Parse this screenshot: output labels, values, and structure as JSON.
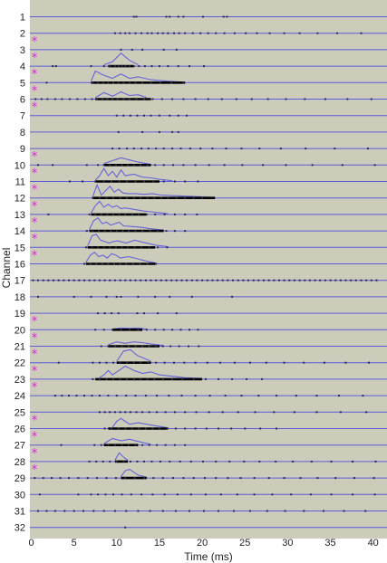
{
  "chart_data": {
    "type": "raster",
    "xlabel": "Time (ms)",
    "ylabel": "Channel",
    "xlim": [
      0,
      41
    ],
    "x_ticks": [
      0,
      5,
      10,
      15,
      20,
      25,
      30,
      35,
      40
    ],
    "channels": [
      1,
      2,
      3,
      4,
      5,
      6,
      7,
      8,
      9,
      10,
      11,
      12,
      13,
      14,
      15,
      16,
      17,
      18,
      19,
      20,
      21,
      22,
      23,
      24,
      25,
      26,
      27,
      28,
      29,
      30,
      31,
      32
    ],
    "marked_channels": [
      3,
      4,
      5,
      6,
      7,
      10,
      11,
      12,
      13,
      14,
      15,
      16,
      20,
      21,
      22,
      23,
      24,
      26,
      27,
      28,
      29
    ],
    "marker_symbol": "*",
    "colors": {
      "background": "#cdcbb9",
      "channel_line": "#5b5bdc",
      "psth_line": "#6464d8",
      "burst_bar": "#000000",
      "spike": "#2b2b45",
      "marker": "#dd22dd"
    },
    "spike_times": {
      "1": [
        12.0,
        12.3,
        15.8,
        16.2,
        17.2,
        17.8,
        20.1,
        22.5,
        22.9
      ],
      "2": [
        9.8,
        10.4,
        11.0,
        11.5,
        12.2,
        12.9,
        13.6,
        14.1,
        14.8,
        15.4,
        16.0,
        16.7,
        17.3,
        18.0,
        18.9,
        19.8,
        20.7,
        21.6,
        22.6,
        23.8,
        25.1,
        26.4,
        27.9,
        29.6,
        31.4,
        33.5,
        35.8,
        38.6
      ],
      "3": [
        10.5,
        11.8,
        13.0,
        15.5,
        17.0
      ],
      "4": [
        2.5,
        2.9,
        7.0,
        8.5,
        9.2,
        9.8,
        10.2,
        10.6,
        11.0,
        11.5,
        12.0,
        12.6,
        13.3,
        14.1,
        15.0,
        16.0,
        17.2,
        18.5,
        20.2
      ],
      "5": [
        1.8,
        7.2,
        7.8,
        8.4,
        9.0,
        9.6,
        10.2,
        10.8,
        11.5,
        12.2,
        13.0,
        14.0,
        15.1,
        16.4,
        17.8
      ],
      "6": [
        0.5,
        1.2,
        1.9,
        2.8,
        3.6,
        4.5,
        5.4,
        6.3,
        7.1,
        7.7,
        8.3,
        8.9,
        9.5,
        10.1,
        10.8,
        11.5,
        12.3,
        13.2,
        14.2,
        15.3,
        16.5,
        17.8,
        19.2,
        20.7,
        22.3,
        24.0,
        25.8,
        27.7,
        29.8,
        32.0,
        34.4,
        37.0,
        39.8
      ],
      "7": [
        10.0,
        10.8,
        11.6,
        12.4,
        13.2,
        14.0,
        15.0,
        16.2,
        17.2,
        18.2
      ],
      "8": [
        10.2,
        13.0,
        15.0,
        16.5,
        17.2
      ],
      "9": [
        9.5,
        10.3,
        11.2,
        12.0,
        12.9,
        13.7,
        14.6,
        15.5,
        16.5,
        17.5,
        18.6,
        19.8,
        21.2,
        22.8,
        24.6,
        26.7,
        29.2,
        32.1,
        35.5,
        39.4
      ],
      "10": [
        0.8,
        2.5,
        6.5,
        7.8,
        8.5,
        9.2,
        9.9,
        10.6,
        11.3,
        12.0,
        12.8,
        13.6,
        14.5,
        15.5,
        16.6,
        17.8,
        19.2,
        20.8,
        22.6,
        24.7,
        27.1,
        29.8,
        32.9,
        36.4,
        40.2
      ],
      "11": [
        4.5,
        6.0,
        7.5,
        8.5,
        9.4,
        10.3,
        11.2,
        12.2,
        13.2,
        14.3,
        15.5,
        16.8,
        18.0,
        19.5
      ],
      "12": [
        7.2,
        8.0,
        8.8,
        9.6,
        10.4,
        11.2,
        12.0,
        12.8,
        13.6,
        14.4,
        15.2,
        16.0,
        17.0,
        18.0,
        19.0,
        20.0
      ],
      "13": [
        2.0,
        6.8,
        7.5,
        8.2,
        8.9,
        9.6,
        10.3,
        11.0,
        11.8,
        12.6,
        13.5,
        14.5,
        15.6,
        16.8,
        18.0,
        19.4
      ],
      "14": [
        6.5,
        7.2,
        7.9,
        8.6,
        9.3,
        10.0,
        10.7,
        11.4,
        12.2,
        13.0,
        13.9,
        14.8,
        15.8,
        16.8,
        18.0
      ],
      "15": [
        6.4,
        7.1,
        7.8,
        8.5,
        9.2,
        9.9,
        10.6,
        11.3,
        12.1,
        12.9,
        13.8,
        14.8,
        15.9
      ],
      "16": [
        6.2,
        6.9,
        7.6,
        8.3,
        9.0,
        9.7,
        10.4,
        11.1,
        11.9,
        12.7,
        13.6,
        14.6
      ],
      "17": [
        0.2,
        0.8,
        1.4,
        2.0,
        2.6,
        3.2,
        3.8,
        4.4,
        5.0,
        5.6,
        6.2,
        6.8,
        7.4,
        8.0,
        8.6,
        9.2,
        9.8,
        10.4,
        11.0,
        11.6,
        12.2,
        12.8,
        13.4,
        14.0,
        14.6,
        15.2,
        15.8,
        16.4,
        17.0,
        17.6,
        18.2,
        18.8,
        19.4,
        20.0,
        20.6,
        21.2,
        21.8,
        22.4,
        23.0,
        23.6,
        24.2,
        24.8,
        25.4,
        26.0,
        26.6,
        27.2,
        27.8,
        28.4,
        29.0,
        29.6,
        30.2,
        30.8,
        31.4,
        32.0,
        32.6,
        33.2,
        33.8,
        34.4,
        35.0,
        35.6,
        36.2,
        36.8,
        37.4,
        38.0,
        38.6,
        39.2,
        39.8,
        40.4
      ],
      "18": [
        0.8,
        5.0,
        7.0,
        8.8,
        10.0,
        10.5,
        12.5,
        14.5,
        16.2,
        18.8,
        23.5
      ],
      "19": [
        7.8,
        8.6,
        9.4,
        10.2,
        12.4,
        13.2,
        14.8,
        17.0
      ],
      "20": [
        7.5,
        8.5,
        9.5,
        10.5,
        11.5,
        12.5,
        13.5,
        14.5,
        15.5,
        16.5,
        17.5,
        18.5,
        19.5
      ],
      "21": [
        8.2,
        9.0,
        9.8,
        10.6,
        11.4,
        12.2,
        13.0,
        13.8,
        14.6,
        15.4,
        16.3,
        17.3,
        18.4,
        19.6
      ],
      "22": [
        3.2,
        7.2,
        8.0,
        8.8,
        9.6,
        10.4,
        11.2,
        12.0,
        12.8,
        13.7,
        14.6,
        15.6,
        16.7,
        17.9,
        19.2,
        20.6,
        22.1,
        23.8,
        25.6,
        27.5,
        29.6,
        31.9,
        34.3,
        36.8,
        39.5
      ],
      "23": [
        7.2,
        8.0,
        8.8,
        9.6,
        10.4,
        11.2,
        12.0,
        12.8,
        13.6,
        14.4,
        15.4,
        16.5,
        17.7,
        19.0,
        20.4,
        21.9,
        23.5,
        25.2,
        27.0
      ],
      "24": [
        2.8,
        3.6,
        4.4,
        5.3,
        6.2,
        7.1,
        8.0,
        9.0,
        10.0,
        11.1,
        12.2,
        13.4,
        14.7,
        16.1,
        17.6,
        19.2,
        20.9,
        22.7,
        24.6,
        26.6,
        28.7,
        31.0,
        33.4,
        36.0,
        38.8
      ],
      "25": [
        8.0,
        8.6,
        9.2,
        9.8,
        10.4,
        11.0,
        11.6,
        12.3,
        13.0,
        13.8,
        14.7,
        15.7,
        16.8,
        18.0,
        19.3,
        20.8,
        22.4,
        24.2,
        26.2,
        28.4,
        30.8,
        33.4,
        36.2,
        39.2
      ],
      "26": [
        8.6,
        9.4,
        10.2,
        11.0,
        11.8,
        12.6,
        13.4,
        14.2,
        15.0,
        15.9,
        16.9,
        18.0,
        19.2,
        20.5,
        21.9,
        23.4,
        25.0,
        26.8,
        28.7
      ],
      "27": [
        3.5,
        7.4,
        8.2,
        9.0,
        9.8,
        10.6,
        11.4,
        12.2,
        13.0,
        13.8,
        14.7,
        15.7,
        16.8,
        18.0
      ],
      "28": [
        6.8,
        7.6,
        8.4,
        9.2,
        10.0,
        10.8,
        11.6,
        12.4,
        13.2,
        14.1,
        15.1,
        16.2,
        17.4,
        18.7,
        20.1,
        21.6,
        23.2,
        24.9,
        26.7,
        28.6,
        30.6,
        32.8,
        35.1,
        37.6,
        40.3
      ],
      "29": [
        0.4,
        1.4,
        2.4,
        3.4,
        4.4,
        5.5,
        6.6,
        7.7,
        8.8,
        9.9,
        11.0,
        12.1,
        13.2,
        14.3,
        15.4,
        16.6,
        17.8,
        19.0,
        20.3,
        21.6,
        23.0,
        24.5,
        26.1,
        27.8,
        29.6,
        31.5,
        33.5,
        35.6,
        37.8,
        40.1
      ],
      "30": [
        1.0,
        5.5,
        7.0,
        7.8,
        8.7,
        9.6,
        10.6,
        11.7,
        12.9,
        14.2,
        15.6,
        17.1,
        18.7,
        20.4,
        22.2,
        24.1,
        26.1,
        28.2,
        30.4,
        32.7,
        35.1,
        37.6,
        40.2
      ],
      "31": [
        0.8,
        1.8,
        2.8,
        3.9,
        5.0,
        6.1,
        7.3,
        8.5,
        9.8,
        11.1,
        12.5,
        13.9,
        15.4,
        16.9,
        18.5,
        20.2,
        21.9,
        23.7,
        25.6,
        27.6,
        29.7,
        31.9,
        34.2,
        36.6,
        39.1
      ],
      "32": [
        11.0
      ]
    },
    "psth": {
      "4": {
        "x": [
          8.5,
          9.5,
          10.5,
          11.5,
          12.5
        ],
        "y": [
          0.1,
          0.3,
          0.9,
          0.4,
          0.1
        ]
      },
      "5": {
        "x": [
          7.0,
          7.5,
          8.5,
          9.5,
          10.5,
          11.5,
          12.5,
          14.0,
          16.0,
          17.5
        ],
        "y": [
          0.1,
          0.8,
          0.5,
          0.3,
          0.6,
          0.3,
          0.4,
          0.2,
          0.1,
          0.05
        ]
      },
      "6": {
        "x": [
          7.5,
          8.5,
          9.5,
          10.5,
          11.5,
          12.5,
          13.5
        ],
        "y": [
          0.1,
          0.45,
          0.2,
          0.5,
          0.25,
          0.3,
          0.1
        ]
      },
      "10": {
        "x": [
          8.5,
          9.5,
          10.5,
          11.5,
          12.5,
          14.0
        ],
        "y": [
          0.1,
          0.3,
          0.5,
          0.35,
          0.2,
          0.05
        ]
      },
      "11": {
        "x": [
          7.5,
          8.0,
          8.5,
          9.0,
          9.5,
          10.0,
          10.5,
          11.0,
          12.0,
          13.0,
          14.0,
          15.0,
          16.5
        ],
        "y": [
          0.1,
          0.4,
          0.9,
          0.4,
          0.7,
          0.3,
          0.8,
          0.4,
          0.5,
          0.3,
          0.25,
          0.15,
          0.05
        ]
      },
      "12": {
        "x": [
          7.2,
          7.7,
          8.2,
          8.7,
          9.2,
          9.7,
          10.2,
          10.7,
          11.2,
          12.2,
          13.2,
          14.2,
          15.2,
          17.0,
          19.0,
          21.0
        ],
        "y": [
          0.1,
          0.9,
          0.2,
          0.5,
          0.8,
          0.4,
          0.6,
          0.35,
          0.3,
          0.3,
          0.25,
          0.3,
          0.2,
          0.15,
          0.1,
          0.05
        ]
      },
      "13": {
        "x": [
          7.0,
          7.5,
          8.0,
          8.5,
          9.0,
          9.5,
          10.0,
          10.5,
          11.0,
          12.0,
          13.0,
          14.5,
          16.0
        ],
        "y": [
          0.1,
          0.6,
          0.9,
          0.5,
          0.7,
          0.5,
          0.6,
          0.4,
          0.45,
          0.35,
          0.25,
          0.15,
          0.05
        ]
      },
      "14": {
        "x": [
          6.8,
          7.3,
          7.8,
          8.3,
          8.8,
          9.3,
          9.8,
          10.3,
          10.8,
          11.8,
          12.8,
          14.0,
          15.5
        ],
        "y": [
          0.1,
          0.7,
          0.9,
          0.5,
          0.6,
          0.4,
          0.5,
          0.6,
          0.35,
          0.3,
          0.25,
          0.15,
          0.05
        ]
      },
      "15": {
        "x": [
          6.6,
          7.1,
          7.6,
          8.1,
          8.6,
          9.1,
          9.6,
          10.1,
          11.1,
          12.1,
          13.1,
          14.6,
          16.0
        ],
        "y": [
          0.1,
          0.8,
          0.9,
          0.5,
          0.4,
          0.3,
          0.4,
          0.45,
          0.3,
          0.5,
          0.35,
          0.15,
          0.05
        ]
      },
      "16": {
        "x": [
          6.4,
          6.9,
          7.4,
          7.9,
          8.4,
          8.9,
          9.4,
          9.9,
          10.4,
          11.4,
          12.4,
          13.4,
          14.6
        ],
        "y": [
          0.1,
          0.6,
          0.8,
          0.5,
          0.6,
          0.4,
          0.7,
          0.6,
          0.4,
          0.5,
          0.35,
          0.2,
          0.05
        ]
      },
      "20": {
        "x": [
          9.5,
          10.5,
          11.5,
          12.5,
          13.5
        ],
        "y": [
          0.05,
          0.12,
          0.1,
          0.12,
          0.05
        ]
      },
      "21": {
        "x": [
          9.0,
          10.0,
          11.0,
          12.0,
          13.0,
          14.0,
          15.5
        ],
        "y": [
          0.1,
          0.3,
          0.2,
          0.3,
          0.25,
          0.15,
          0.05
        ]
      },
      "22": {
        "x": [
          10.0,
          10.8,
          11.6,
          12.4,
          13.2,
          14.0
        ],
        "y": [
          0.1,
          0.8,
          0.9,
          0.5,
          0.3,
          0.1
        ]
      },
      "23": {
        "x": [
          8.0,
          8.5,
          9.0,
          9.5,
          10.0,
          10.5,
          11.0,
          12.0,
          13.0,
          14.0,
          15.0,
          16.5,
          18.0,
          20.0
        ],
        "y": [
          0.1,
          0.3,
          0.6,
          0.3,
          0.5,
          0.7,
          0.9,
          0.6,
          0.4,
          0.5,
          0.3,
          0.2,
          0.1,
          0.05
        ]
      },
      "26": {
        "x": [
          9.5,
          10.0,
          10.5,
          11.0,
          11.5,
          12.5,
          13.5,
          14.5,
          16.0
        ],
        "y": [
          0.1,
          0.5,
          0.7,
          0.5,
          0.3,
          0.4,
          0.3,
          0.2,
          0.05
        ]
      },
      "27": {
        "x": [
          8.5,
          9.5,
          10.5,
          11.5,
          12.5,
          14.0
        ],
        "y": [
          0.1,
          0.45,
          0.3,
          0.4,
          0.25,
          0.05
        ]
      },
      "28": {
        "x": [
          9.8,
          10.3,
          10.8,
          11.3
        ],
        "y": [
          0.1,
          0.6,
          0.3,
          0.1
        ]
      },
      "29": {
        "x": [
          10.5,
          11.0,
          11.5,
          12.0,
          12.5,
          13.5
        ],
        "y": [
          0.1,
          0.5,
          0.6,
          0.4,
          0.2,
          0.05
        ]
      }
    },
    "bursts": {
      "4": [
        9.0,
        12.0
      ],
      "5": [
        7.0,
        18.0
      ],
      "6": [
        7.5,
        14.0
      ],
      "10": [
        8.5,
        14.0
      ],
      "11": [
        7.5,
        15.0
      ],
      "12": [
        7.2,
        21.5
      ],
      "13": [
        7.0,
        13.5
      ],
      "14": [
        6.8,
        15.5
      ],
      "15": [
        6.6,
        14.5
      ],
      "16": [
        6.4,
        14.5
      ],
      "20": [
        9.5,
        13.0
      ],
      "21": [
        9.0,
        15.0
      ],
      "22": [
        10.0,
        14.0
      ],
      "23": [
        7.5,
        20.0
      ],
      "26": [
        9.0,
        16.0
      ],
      "27": [
        8.5,
        12.5
      ],
      "28": [
        9.8,
        11.3
      ],
      "29": [
        10.5,
        13.5
      ]
    }
  }
}
